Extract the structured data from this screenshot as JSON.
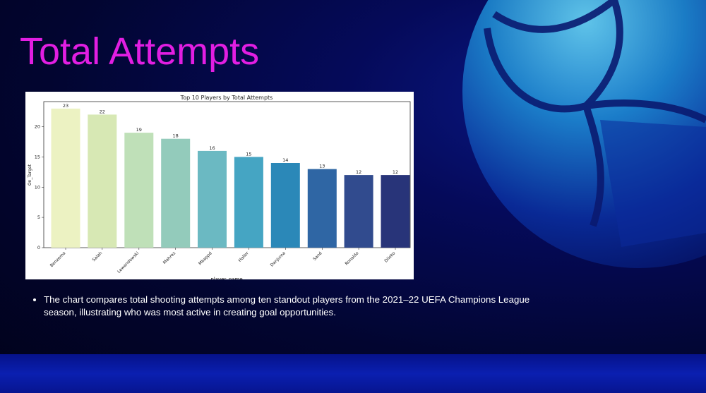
{
  "slide": {
    "title": "Total Attempts",
    "bullets": [
      "The chart compares total shooting attempts among ten standout players from the 2021–22 UEFA Champions League season, illustrating who was most active in creating goal opportunities."
    ]
  },
  "colors": {
    "title": "#e21ee2",
    "bars": [
      "#ecf2c2",
      "#d7e8b4",
      "#bfe0b8",
      "#93cbbb",
      "#6bb9c2",
      "#45a5c3",
      "#2b88b8",
      "#2f66a4",
      "#314b8e",
      "#283479"
    ]
  },
  "chart_data": {
    "type": "bar",
    "title": "Top 10 Players by Total Attempts",
    "xlabel": "player_name",
    "ylabel": "On_Target",
    "categories": [
      "Benzema",
      "Salah",
      "Lewandowski",
      "Mahrez",
      "Mbappé",
      "Haller",
      "Danjuma",
      "Sané",
      "Ronaldo",
      "Diloko"
    ],
    "values": [
      23,
      22,
      19,
      18,
      16,
      15,
      14,
      13,
      12,
      12
    ],
    "yticks": [
      0,
      5,
      10,
      15,
      20
    ],
    "ylim": [
      0,
      24.15
    ],
    "grid": false,
    "legend": "none"
  }
}
